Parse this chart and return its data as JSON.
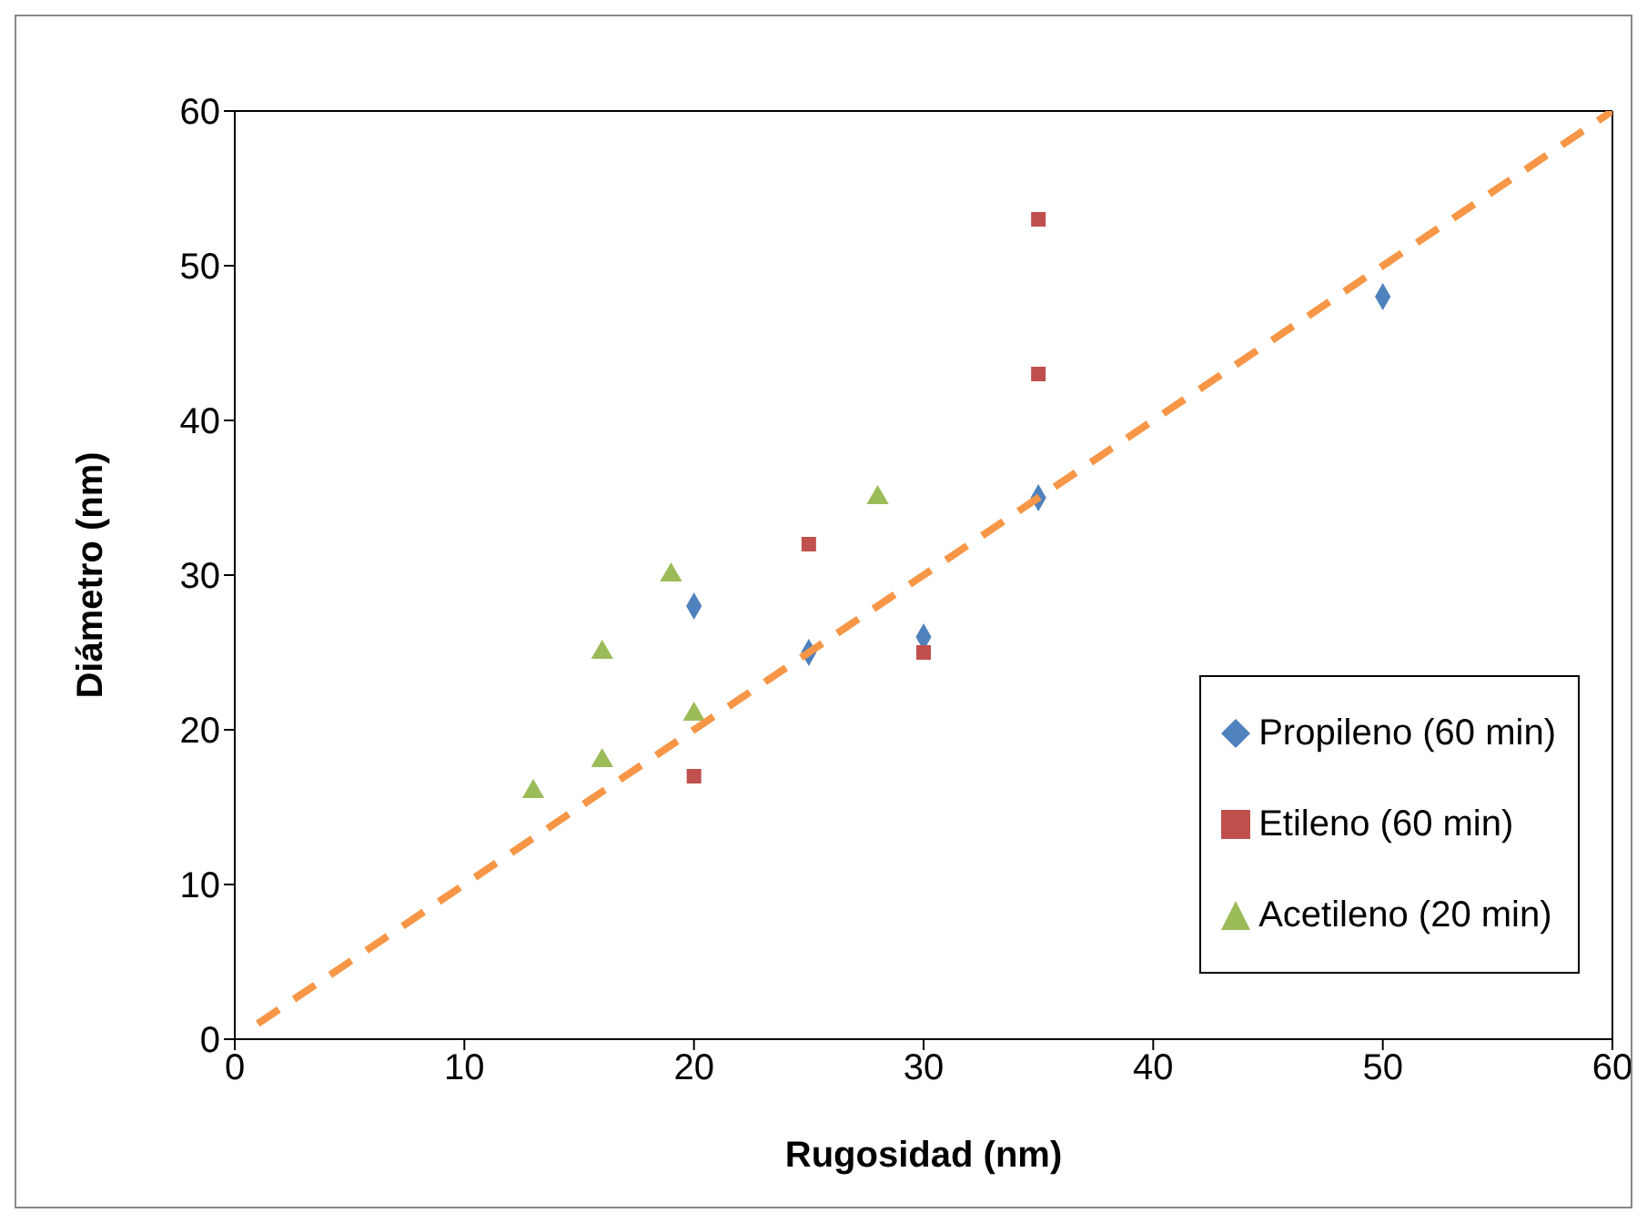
{
  "chart_data": {
    "type": "scatter",
    "xlabel": "Rugosidad (nm)",
    "ylabel": "Diámetro (nm)",
    "xlim": [
      0,
      60
    ],
    "ylim": [
      0,
      60
    ],
    "xticks": [
      0,
      10,
      20,
      30,
      40,
      50,
      60
    ],
    "yticks": [
      0,
      10,
      20,
      30,
      40,
      50,
      60
    ],
    "legend": "bottom right",
    "series": [
      {
        "name": "Propileno (60 min)",
        "color": "#4f81bd",
        "marker": "diamond",
        "x": [
          20,
          25,
          30,
          35,
          50
        ],
        "values": [
          28,
          25,
          26,
          35,
          48
        ]
      },
      {
        "name": "Etileno (60 min)",
        "color": "#c0504d",
        "marker": "square",
        "x": [
          20,
          25,
          30,
          35,
          35
        ],
        "values": [
          17,
          32,
          25,
          43,
          53
        ]
      },
      {
        "name": "Acetileno (20 min)",
        "color": "#9bbb59",
        "marker": "triangle",
        "x": [
          13,
          16,
          16,
          19,
          20,
          28
        ],
        "values": [
          16,
          18,
          25,
          30,
          21,
          35
        ]
      },
      {
        "type": "line",
        "color": "#f79646",
        "line_style": "dashed",
        "marker": "none",
        "x": [
          1,
          60
        ],
        "values": [
          1,
          60
        ]
      }
    ]
  }
}
